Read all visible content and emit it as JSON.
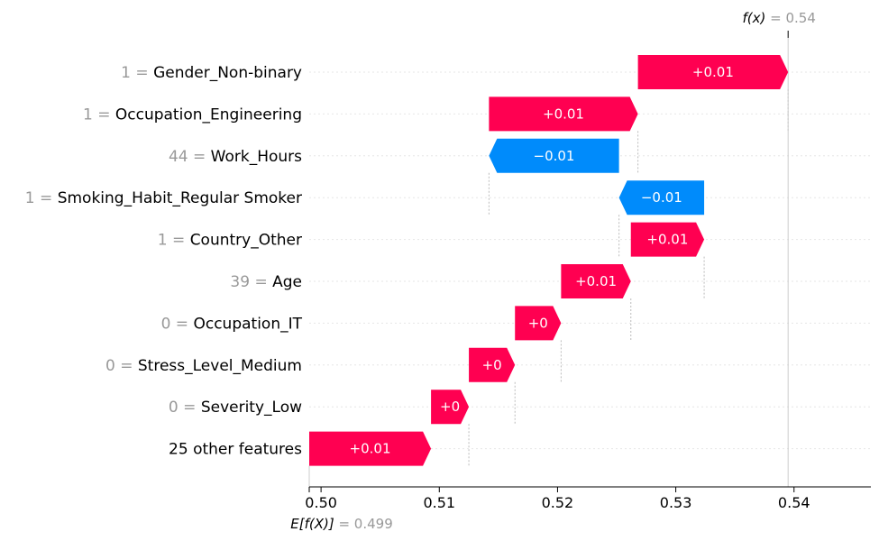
{
  "chart_data": {
    "type": "waterfall",
    "xlim": [
      0.499,
      0.5465
    ],
    "x_ticks": [
      0.5,
      0.51,
      0.52,
      0.53,
      0.54
    ],
    "x_tick_labels": [
      "0.50",
      "0.51",
      "0.52",
      "0.53",
      "0.54"
    ],
    "base_value": 0.499,
    "base_label": {
      "fn": "E[f(X)]",
      "value": "0.499"
    },
    "output_value": 0.5395,
    "output_label": {
      "fn": "f(x)",
      "value": "0.54"
    },
    "colors": {
      "positive": "#ff0051",
      "negative": "#008bfb",
      "value_text": "#999999"
    },
    "features": [
      {
        "value": "1",
        "name": "Gender_Non-binary",
        "start": 0.5268,
        "end": 0.5395,
        "label": "+0.01"
      },
      {
        "value": "1",
        "name": "Occupation_Engineering",
        "start": 0.5142,
        "end": 0.5268,
        "label": "+0.01"
      },
      {
        "value": "44",
        "name": "Work_Hours",
        "start": 0.5252,
        "end": 0.5142,
        "label": "−0.01"
      },
      {
        "value": "1",
        "name": "Smoking_Habit_Regular Smoker",
        "start": 0.5324,
        "end": 0.5252,
        "label": "−0.01"
      },
      {
        "value": "1",
        "name": "Country_Other",
        "start": 0.5262,
        "end": 0.5324,
        "label": "+0.01"
      },
      {
        "value": "39",
        "name": "Age",
        "start": 0.5203,
        "end": 0.5262,
        "label": "+0.01"
      },
      {
        "value": "0",
        "name": "Occupation_IT",
        "start": 0.5164,
        "end": 0.5203,
        "label": "+0"
      },
      {
        "value": "0",
        "name": "Stress_Level_Medium",
        "start": 0.5125,
        "end": 0.5164,
        "label": "+0"
      },
      {
        "value": "0",
        "name": "Severity_Low",
        "start": 0.5093,
        "end": 0.5125,
        "label": "+0"
      },
      {
        "value": "",
        "name": "25 other features",
        "start": 0.499,
        "end": 0.5093,
        "label": "+0.01"
      }
    ]
  }
}
